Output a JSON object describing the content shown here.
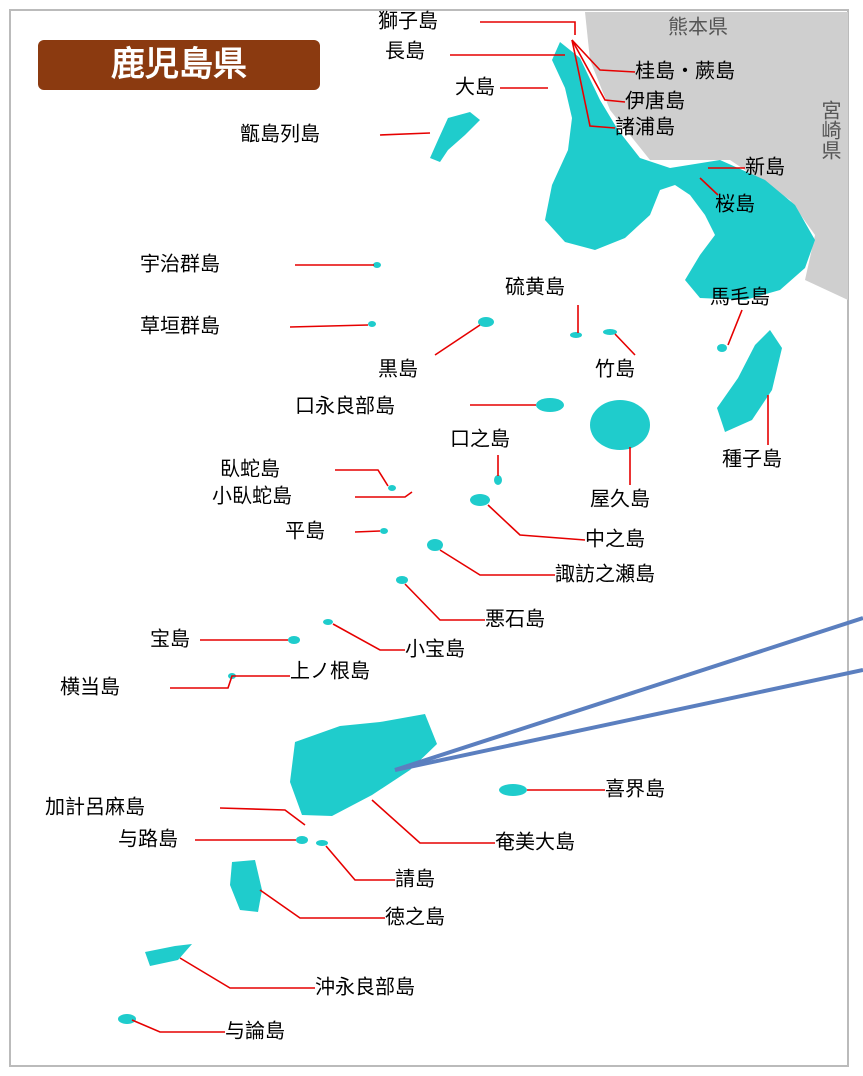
{
  "title": "鹿児島県",
  "prefectures": [
    "熊本県",
    "宮崎県"
  ],
  "islands": [
    "獅子島",
    "長島",
    "大島",
    "桂島・蕨島",
    "伊唐島",
    "諸浦島",
    "甑島列島",
    "新島",
    "桜島",
    "宇治群島",
    "草垣群島",
    "硫黄島",
    "馬毛島",
    "黒島",
    "竹島",
    "口永良部島",
    "口之島",
    "種子島",
    "臥蛇島",
    "小臥蛇島",
    "屋久島",
    "平島",
    "中之島",
    "諏訪之瀬島",
    "悪石島",
    "宝島",
    "小宝島",
    "横当島",
    "上ノ根島",
    "喜界島",
    "加計呂麻島",
    "奄美大島",
    "与路島",
    "請島",
    "徳之島",
    "沖永良部島",
    "与論島"
  ]
}
